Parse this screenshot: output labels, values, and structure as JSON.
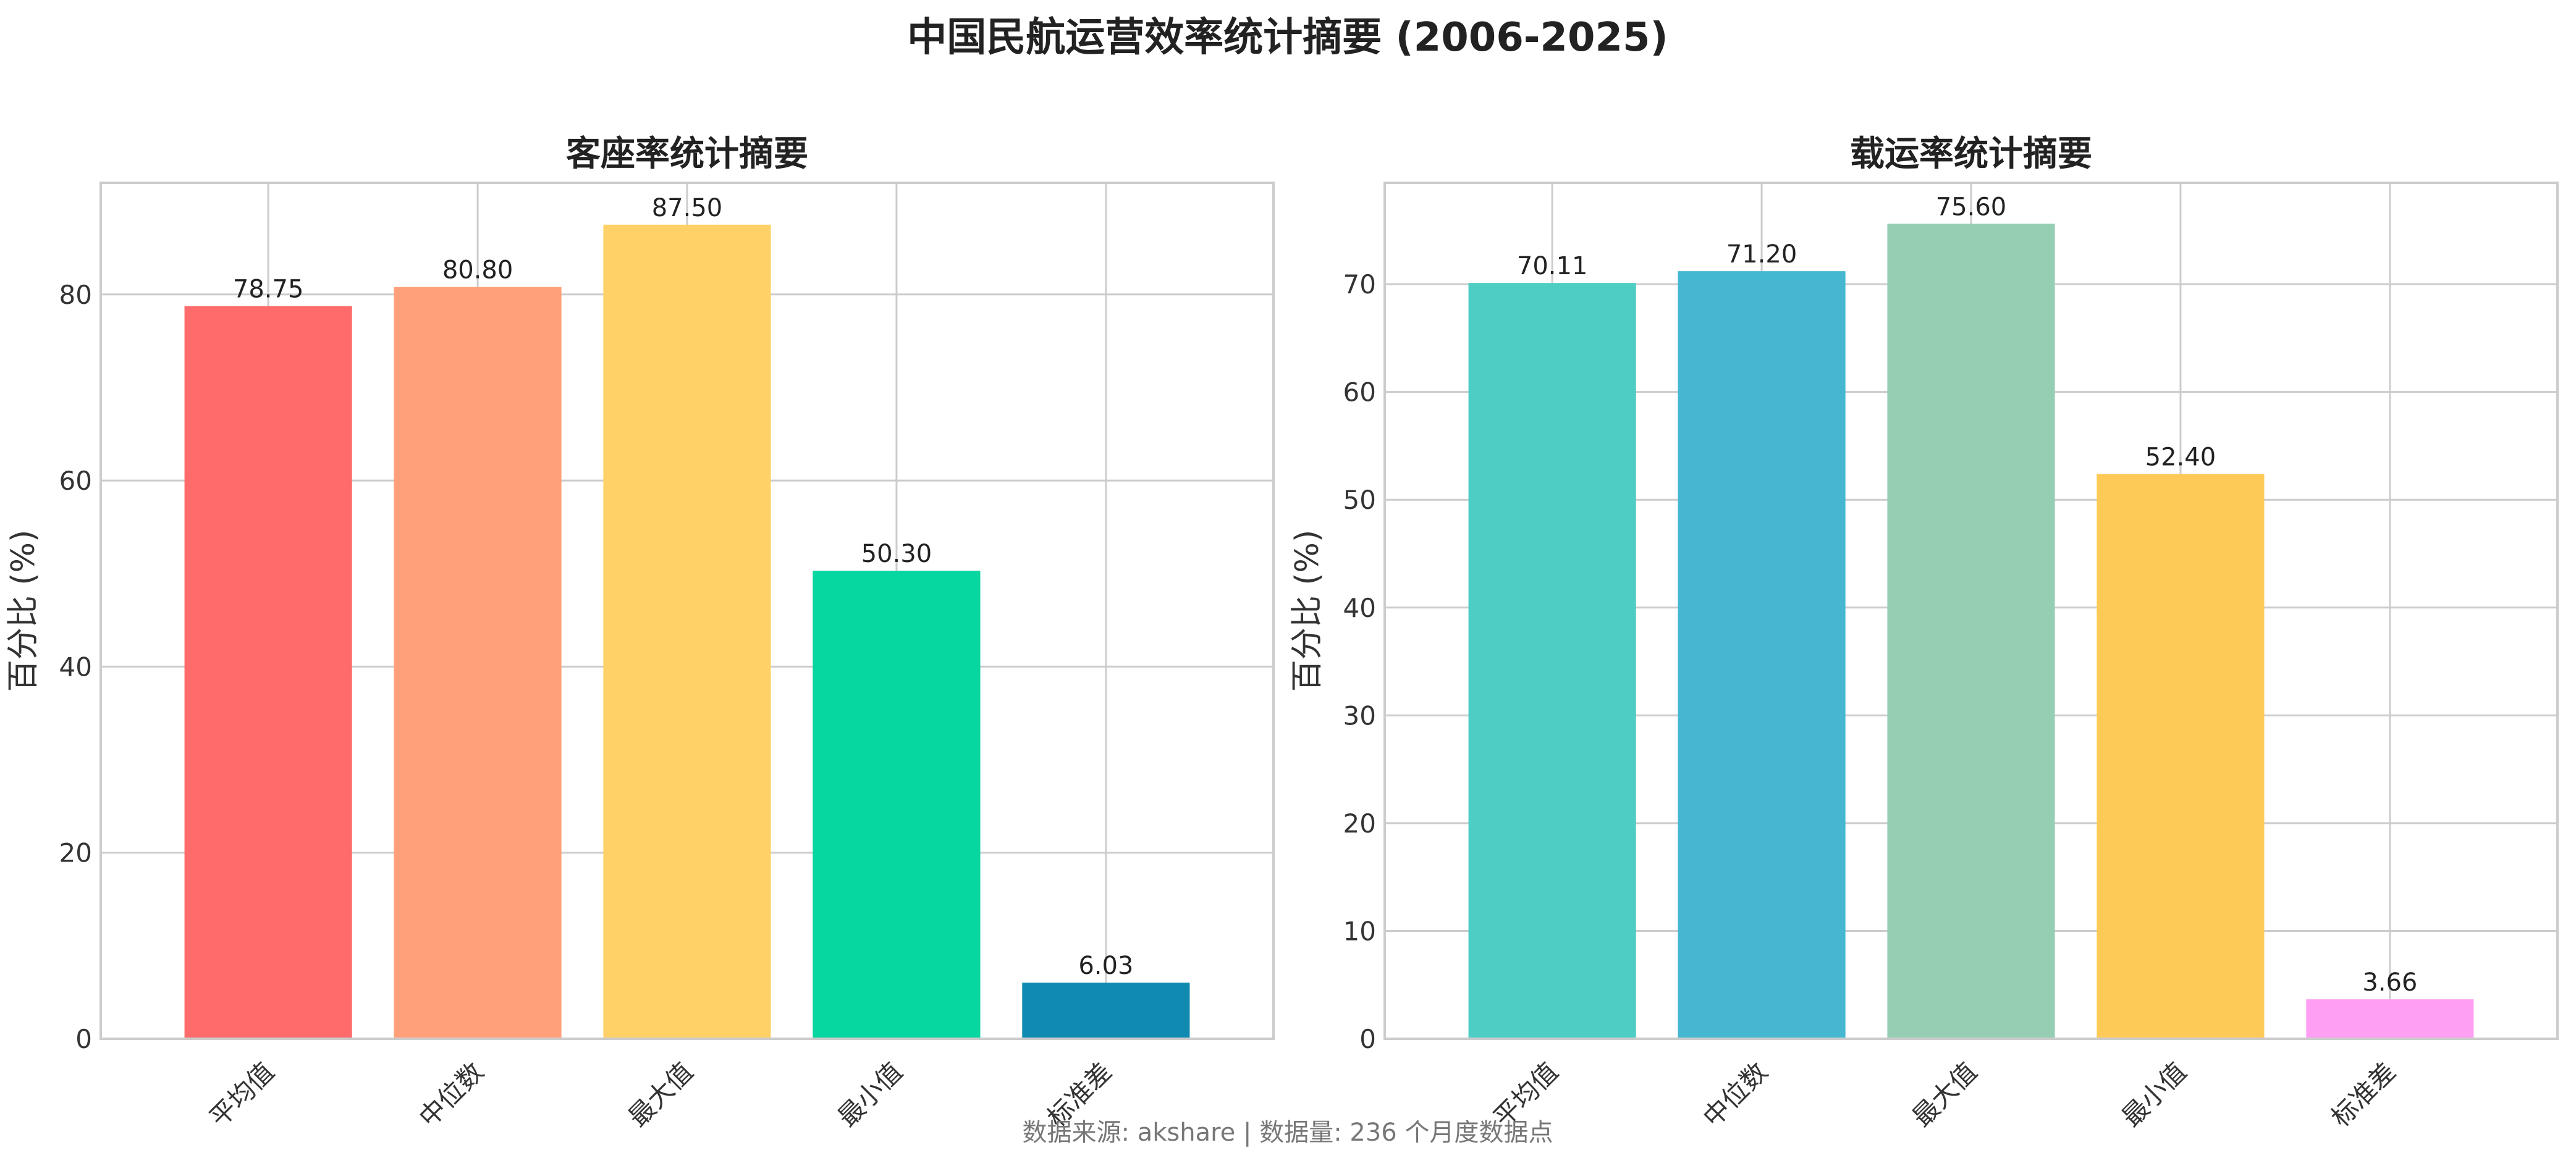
{
  "figure": {
    "title": "中国民航运营效率统计摘要 (2006-2025)",
    "footer": "数据来源: akshare | 数据量: 236 个月度数据点"
  },
  "chart_data": [
    {
      "type": "bar",
      "title": "客座率统计摘要",
      "xlabel": "",
      "ylabel": "百分比 (%)",
      "categories": [
        "平均值",
        "中位数",
        "最大值",
        "最小值",
        "标准差"
      ],
      "values": [
        78.75,
        80.8,
        87.5,
        50.3,
        6.03
      ],
      "value_labels": [
        "78.75",
        "80.80",
        "87.50",
        "50.30",
        "6.03"
      ],
      "colors": [
        "#FF6B6B",
        "#FFA07A",
        "#FFD166",
        "#06D6A0",
        "#118AB2"
      ],
      "ylim": [
        0,
        92
      ],
      "yticks": [
        0,
        20,
        40,
        60,
        80
      ],
      "grid": true,
      "legend": "none"
    },
    {
      "type": "bar",
      "title": "载运率统计摘要",
      "xlabel": "",
      "ylabel": "百分比 (%)",
      "categories": [
        "平均值",
        "中位数",
        "最大值",
        "最小值",
        "标准差"
      ],
      "values": [
        70.11,
        71.2,
        75.6,
        52.4,
        3.66
      ],
      "value_labels": [
        "70.11",
        "71.20",
        "75.60",
        "52.40",
        "3.66"
      ],
      "colors": [
        "#4ECDC4",
        "#45B7D1",
        "#96CEB4",
        "#FECA57",
        "#FF9FF3"
      ],
      "ylim": [
        0,
        79.4
      ],
      "yticks": [
        0,
        10,
        20,
        30,
        40,
        50,
        60,
        70
      ],
      "grid": true,
      "legend": "none"
    }
  ]
}
